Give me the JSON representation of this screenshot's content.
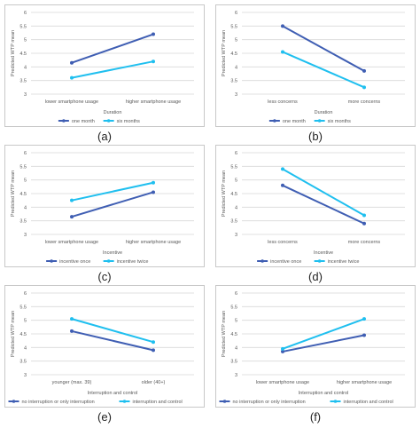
{
  "colors": {
    "dark": "#3f5eb3",
    "light": "#1fbfef",
    "grid": "#d9d9d9",
    "text": "#595959"
  },
  "chart_data": [
    {
      "panel_label": "(a)",
      "type": "line",
      "ylabel": "Predicted WTP mean",
      "xlabel": "Duration",
      "yticks": [
        "3",
        "3.5",
        "4",
        "4.5",
        "5",
        "5.5",
        "6"
      ],
      "ylim": [
        3,
        6
      ],
      "categories": [
        "lower smartphone usage",
        "higher smartphone usage"
      ],
      "series": [
        {
          "name": "one month",
          "values": [
            4.15,
            5.2
          ],
          "color": "dark"
        },
        {
          "name": "six months",
          "values": [
            3.6,
            4.2
          ],
          "color": "light"
        }
      ],
      "legend": "bottom"
    },
    {
      "panel_label": "(b)",
      "type": "line",
      "ylabel": "Predicted WTP mean",
      "xlabel": "Duration",
      "yticks": [
        "3",
        "3.5",
        "4",
        "4.5",
        "5",
        "5.5",
        "6"
      ],
      "ylim": [
        3,
        6
      ],
      "categories": [
        "less concerns",
        "more concerns"
      ],
      "series": [
        {
          "name": "one month",
          "values": [
            5.5,
            3.85
          ],
          "color": "dark"
        },
        {
          "name": "six months",
          "values": [
            4.55,
            3.25
          ],
          "color": "light"
        }
      ],
      "legend": "bottom"
    },
    {
      "panel_label": "(c)",
      "type": "line",
      "ylabel": "Predicted WTP mean",
      "xlabel": "Incentive",
      "yticks": [
        "3",
        "3.5",
        "4",
        "4.5",
        "5",
        "5.5",
        "6"
      ],
      "ylim": [
        3,
        6
      ],
      "categories": [
        "lower smartphone usage",
        "higher smartphone usage"
      ],
      "series": [
        {
          "name": "incentive once",
          "values": [
            3.65,
            4.55
          ],
          "color": "dark"
        },
        {
          "name": "incentive twice",
          "values": [
            4.25,
            4.9
          ],
          "color": "light"
        }
      ],
      "legend": "bottom"
    },
    {
      "panel_label": "(d)",
      "type": "line",
      "ylabel": "Predicted WTP mean",
      "xlabel": "Incentive",
      "yticks": [
        "3",
        "3.5",
        "4",
        "4.5",
        "5",
        "5.5",
        "6"
      ],
      "ylim": [
        3,
        6
      ],
      "categories": [
        "less concerns",
        "more concerns"
      ],
      "series": [
        {
          "name": "incentive once",
          "values": [
            4.8,
            3.4
          ],
          "color": "dark"
        },
        {
          "name": "incentive twice",
          "values": [
            5.4,
            3.7
          ],
          "color": "light"
        }
      ],
      "legend": "bottom"
    },
    {
      "panel_label": "(e)",
      "type": "line",
      "ylabel": "Predicted WTP mean",
      "xlabel": "Interruption and control",
      "yticks": [
        "3",
        "3.5",
        "4",
        "4.5",
        "5",
        "5.5",
        "6"
      ],
      "ylim": [
        3,
        6
      ],
      "categories": [
        "younger (max. 39)",
        "older (40+)"
      ],
      "series": [
        {
          "name": "no interruption or only interruption",
          "values": [
            4.6,
            3.9
          ],
          "color": "dark"
        },
        {
          "name": "interruption and control",
          "values": [
            5.05,
            4.2
          ],
          "color": "light"
        }
      ],
      "legend": "bottom"
    },
    {
      "panel_label": "(f)",
      "type": "line",
      "ylabel": "Predicted WTP mean",
      "xlabel": "Interruption and control",
      "yticks": [
        "3",
        "3.5",
        "4",
        "4.5",
        "5",
        "5.5",
        "6"
      ],
      "ylim": [
        3,
        6
      ],
      "categories": [
        "lower smartphone usage",
        "higher smartphone usage"
      ],
      "series": [
        {
          "name": "no interruption or only interruption",
          "values": [
            3.85,
            4.45
          ],
          "color": "dark"
        },
        {
          "name": "interruption and control",
          "values": [
            3.95,
            5.05
          ],
          "color": "light"
        }
      ],
      "legend": "bottom"
    }
  ]
}
